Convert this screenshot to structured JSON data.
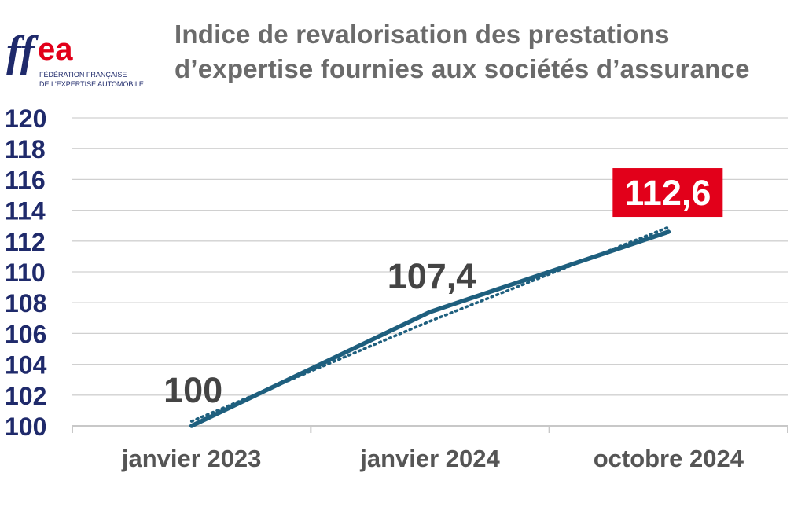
{
  "logo": {
    "letters": "ffea",
    "line1": "FÉDÉRATION FRANÇAISE",
    "line2": "DE L'EXPERTISE AUTOMOBILE",
    "colors": {
      "blue": "#1f2a6b",
      "red": "#e2001a"
    }
  },
  "chart_data": {
    "type": "line",
    "title_lines": [
      "Indice de revalorisation des prestations",
      "d’expertise fournies aux sociétés d’assurance"
    ],
    "categories": [
      "janvier 2023",
      "janvier 2024",
      "octobre 2024"
    ],
    "series": [
      {
        "values": [
          100,
          107.4,
          112.6
        ],
        "color": "#1e5f7e",
        "style": "solid"
      },
      {
        "values": [
          100.3,
          106.8,
          112.9
        ],
        "color": "#1e5f7e",
        "style": "dotted",
        "note": "trend"
      }
    ],
    "data_labels": [
      "100",
      "107,4",
      "112,6"
    ],
    "highlight_label": {
      "index": 2,
      "background": "#e2001a",
      "color": "#ffffff"
    },
    "ylim": [
      100,
      120
    ],
    "yticks": [
      "100",
      "102",
      "104",
      "106",
      "108",
      "110",
      "112",
      "114",
      "116",
      "118",
      "120"
    ],
    "grid": true,
    "colors": {
      "axis_text": "#1f2a6b",
      "category_text": "#555555",
      "label_text": "#444444",
      "grid": "#d0d0d0"
    }
  }
}
